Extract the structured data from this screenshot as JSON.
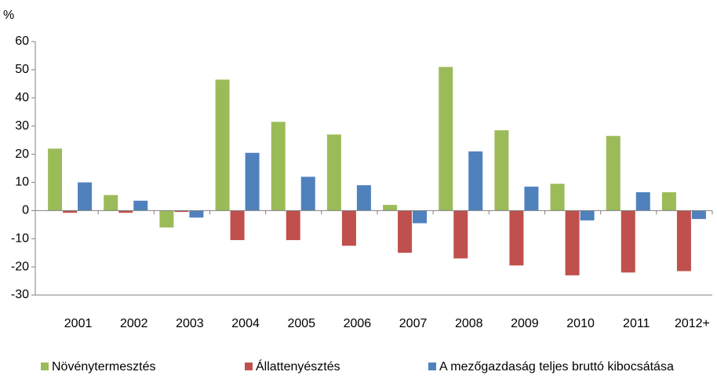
{
  "chart_data": {
    "type": "bar",
    "y_label": "%",
    "categories": [
      "2001",
      "2002",
      "2003",
      "2004",
      "2005",
      "2006",
      "2007",
      "2008",
      "2009",
      "2010",
      "2011",
      "2012+"
    ],
    "series": [
      {
        "name": "Növénytermesztés",
        "color": "#9bbb59",
        "values": [
          22,
          5.5,
          -6,
          46.5,
          31.5,
          27,
          2,
          51,
          28.5,
          9.5,
          26.5,
          6.5
        ]
      },
      {
        "name": "Állattenyésztés",
        "color": "#c0504d",
        "values": [
          -0.8,
          -0.8,
          -0.5,
          -10.5,
          -10.5,
          -12.5,
          -15,
          -17,
          -19.5,
          -23,
          -22,
          -21.5
        ]
      },
      {
        "name": "A mezőgazdaság teljes bruttó kibocsátása",
        "color": "#4f81bd",
        "values": [
          10,
          3.5,
          -2.5,
          20.5,
          12,
          9,
          -4.5,
          21,
          8.5,
          -3.5,
          6.5,
          -3
        ]
      }
    ],
    "ylim": [
      -30,
      60
    ],
    "yticks": [
      -30,
      -20,
      -10,
      0,
      10,
      20,
      30,
      40,
      50,
      60
    ],
    "legend": "bottom"
  }
}
